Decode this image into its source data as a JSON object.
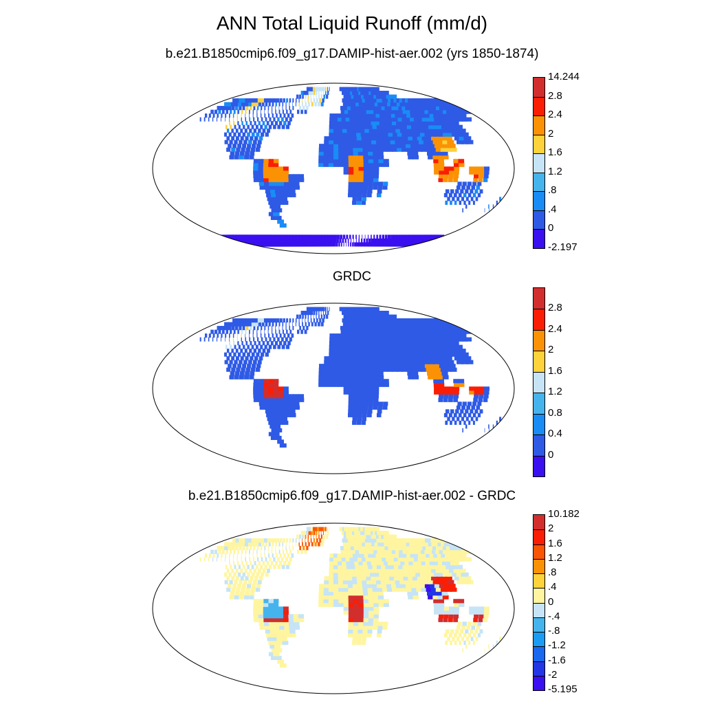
{
  "title": "ANN Total Liquid Runoff (mm/d)",
  "panels": [
    {
      "id": "model",
      "title": "b.e21.B1850cmip6.f09_g17.DAMIP-hist-aer.002 (yrs 1850-1874)",
      "colorbar": {
        "colors": [
          "#3a0ff0",
          "#2e5ae6",
          "#1a8cf5",
          "#46b4ec",
          "#c6e4f6",
          "#fdd23a",
          "#fb9205",
          "#fa1e05",
          "#d22e2e"
        ],
        "labels": [
          "-2.197",
          "0",
          ".4",
          ".8",
          "1.2",
          "1.6",
          "2",
          "2.4",
          "2.8",
          "14.244"
        ]
      }
    },
    {
      "id": "obs",
      "title": "GRDC",
      "colorbar": {
        "colors": [
          "#3a0ff0",
          "#2e5ae6",
          "#1a8cf5",
          "#46b4ec",
          "#c6e4f6",
          "#fdd23a",
          "#fb9205",
          "#fa1e05",
          "#d22e2e"
        ],
        "labels": [
          "",
          "0",
          "0.4",
          "0.8",
          "1.2",
          "1.6",
          "2",
          "2.4",
          "2.8",
          ""
        ]
      }
    },
    {
      "id": "diff",
      "title": "b.e21.B1850cmip6.f09_g17.DAMIP-hist-aer.002 - GRDC",
      "colorbar": {
        "colors": [
          "#3a0ff0",
          "#2336e6",
          "#1868f0",
          "#1a9cf5",
          "#46b4ec",
          "#c6e4f6",
          "#fff5a0",
          "#fdd23a",
          "#fb9205",
          "#fa5505",
          "#fa1e05",
          "#d22e2e"
        ],
        "labels": [
          "-5.195",
          "-2",
          "-1.6",
          "-1.2",
          "-.8",
          "-.4",
          "0",
          ".4",
          ".8",
          "1.2",
          "1.6",
          "2",
          "10.182"
        ]
      }
    }
  ]
}
